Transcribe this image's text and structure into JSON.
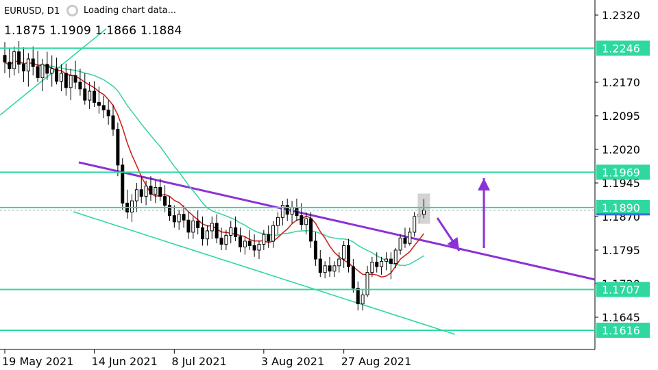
{
  "header": {
    "symbol": "EURUSD, D1",
    "loading_text": "Loading chart data...",
    "ohlc_text": "1.1875 1.1909 1.1866 1.1884"
  },
  "colors": {
    "background": "#ffffff",
    "level_line": "#2ed8a0",
    "ma_fast": "#c8271f",
    "ma_slow": "#3fd3a3",
    "trendline": "#8b32d6",
    "arrow": "#8b32d6",
    "candle_bull": "#ffffff",
    "candle_bear": "#000000",
    "price_label_bg": "#2ed8a0",
    "price_label_text": "#ffffff",
    "bid_line": "#3a6fd8"
  },
  "chart_data": {
    "type": "candlestick",
    "symbol": "EURUSD",
    "timeframe": "D1",
    "ylim": [
      1.1595,
      1.2355
    ],
    "y_ticks": [
      "1.2320",
      "1.2170",
      "1.2095",
      "1.2020",
      "1.1945",
      "1.1870",
      "1.1795",
      "1.1720",
      "1.1645"
    ],
    "x_ticks": [
      "19 May 2021",
      "14 Jun 2021",
      "8 Jul 2021",
      "3 Aug 2021",
      "27 Aug 2021"
    ],
    "last_price": {
      "open": 1.1875,
      "high": 1.1909,
      "low": 1.1866,
      "close": 1.1884
    },
    "levels": [
      {
        "price": 1.2246,
        "label": "1.2246"
      },
      {
        "price": 1.1969,
        "label": "1.1969"
      },
      {
        "price": 1.189,
        "label": "1.1890"
      },
      {
        "price": 1.1707,
        "label": "1.1707"
      },
      {
        "price": 1.1616,
        "label": "1.1616"
      }
    ],
    "candles": [
      [
        1.223,
        1.226,
        1.219,
        1.2215
      ],
      [
        1.2215,
        1.2245,
        1.218,
        1.22
      ],
      [
        1.22,
        1.225,
        1.2185,
        1.2238
      ],
      [
        1.2238,
        1.2262,
        1.219,
        1.221
      ],
      [
        1.221,
        1.2248,
        1.217,
        1.2195
      ],
      [
        1.2195,
        1.2235,
        1.216,
        1.2222
      ],
      [
        1.2222,
        1.225,
        1.2185,
        1.2205
      ],
      [
        1.2205,
        1.224,
        1.217,
        1.218
      ],
      [
        1.218,
        1.2222,
        1.215,
        1.221
      ],
      [
        1.221,
        1.2238,
        1.2175,
        1.219
      ],
      [
        1.219,
        1.223,
        1.216,
        1.22
      ],
      [
        1.22,
        1.2225,
        1.2165,
        1.2172
      ],
      [
        1.2172,
        1.221,
        1.215,
        1.219
      ],
      [
        1.219,
        1.2212,
        1.214,
        1.2158
      ],
      [
        1.2158,
        1.22,
        1.213,
        1.2185
      ],
      [
        1.2185,
        1.2218,
        1.2155,
        1.217
      ],
      [
        1.217,
        1.22,
        1.214,
        1.2155
      ],
      [
        1.2155,
        1.219,
        1.212,
        1.213
      ],
      [
        1.213,
        1.217,
        1.211,
        1.215
      ],
      [
        1.215,
        1.2172,
        1.2115,
        1.2125
      ],
      [
        1.2125,
        1.216,
        1.21,
        1.2118
      ],
      [
        1.2118,
        1.214,
        1.209,
        1.2108
      ],
      [
        1.2108,
        1.213,
        1.2075,
        1.2095
      ],
      [
        1.2095,
        1.212,
        1.205,
        1.2065
      ],
      [
        1.2065,
        1.208,
        1.196,
        1.1985
      ],
      [
        1.1985,
        1.2,
        1.1885,
        1.19
      ],
      [
        1.19,
        1.193,
        1.1865,
        1.188
      ],
      [
        1.188,
        1.192,
        1.1858,
        1.1905
      ],
      [
        1.1905,
        1.1945,
        1.188,
        1.193
      ],
      [
        1.193,
        1.196,
        1.19,
        1.1915
      ],
      [
        1.1915,
        1.195,
        1.1895,
        1.1938
      ],
      [
        1.1938,
        1.196,
        1.1905,
        1.192
      ],
      [
        1.192,
        1.195,
        1.19,
        1.1935
      ],
      [
        1.1935,
        1.1955,
        1.1905,
        1.1915
      ],
      [
        1.1915,
        1.194,
        1.188,
        1.1895
      ],
      [
        1.1895,
        1.1915,
        1.186,
        1.1872
      ],
      [
        1.1872,
        1.1895,
        1.1845,
        1.1858
      ],
      [
        1.1858,
        1.1885,
        1.184,
        1.1875
      ],
      [
        1.1875,
        1.1895,
        1.1845,
        1.1862
      ],
      [
        1.1862,
        1.188,
        1.182,
        1.1835
      ],
      [
        1.1835,
        1.187,
        1.182,
        1.186
      ],
      [
        1.186,
        1.1885,
        1.183,
        1.1845
      ],
      [
        1.1845,
        1.187,
        1.1805,
        1.182
      ],
      [
        1.182,
        1.185,
        1.1805,
        1.1838
      ],
      [
        1.1838,
        1.187,
        1.182,
        1.1855
      ],
      [
        1.1855,
        1.1875,
        1.181,
        1.1822
      ],
      [
        1.1822,
        1.1845,
        1.1795,
        1.1808
      ],
      [
        1.1808,
        1.184,
        1.1795,
        1.1828
      ],
      [
        1.1828,
        1.186,
        1.181,
        1.1845
      ],
      [
        1.1845,
        1.187,
        1.1815,
        1.1825
      ],
      [
        1.1825,
        1.1845,
        1.179,
        1.1802
      ],
      [
        1.1802,
        1.1825,
        1.1785,
        1.1815
      ],
      [
        1.1815,
        1.184,
        1.1795,
        1.1805
      ],
      [
        1.1805,
        1.183,
        1.178,
        1.1795
      ],
      [
        1.1795,
        1.1815,
        1.1775,
        1.1808
      ],
      [
        1.1808,
        1.184,
        1.1795,
        1.183
      ],
      [
        1.183,
        1.185,
        1.18,
        1.1815
      ],
      [
        1.1815,
        1.186,
        1.18,
        1.185
      ],
      [
        1.185,
        1.188,
        1.183,
        1.1868
      ],
      [
        1.1868,
        1.1905,
        1.185,
        1.1895
      ],
      [
        1.1895,
        1.191,
        1.186,
        1.1875
      ],
      [
        1.1875,
        1.1905,
        1.1855,
        1.189
      ],
      [
        1.189,
        1.191,
        1.186,
        1.1872
      ],
      [
        1.1872,
        1.19,
        1.184,
        1.1852
      ],
      [
        1.1852,
        1.188,
        1.183,
        1.1865
      ],
      [
        1.1865,
        1.188,
        1.18,
        1.1815
      ],
      [
        1.1815,
        1.1835,
        1.176,
        1.1775
      ],
      [
        1.1775,
        1.1795,
        1.1735,
        1.1745
      ],
      [
        1.1745,
        1.177,
        1.1732,
        1.176
      ],
      [
        1.176,
        1.178,
        1.1735,
        1.1748
      ],
      [
        1.1748,
        1.177,
        1.1735,
        1.176
      ],
      [
        1.176,
        1.179,
        1.1745,
        1.1775
      ],
      [
        1.1775,
        1.1815,
        1.1755,
        1.1805
      ],
      [
        1.1805,
        1.182,
        1.1745,
        1.1758
      ],
      [
        1.1758,
        1.1775,
        1.17,
        1.171
      ],
      [
        1.171,
        1.1725,
        1.166,
        1.1675
      ],
      [
        1.1675,
        1.1705,
        1.166,
        1.1695
      ],
      [
        1.1695,
        1.176,
        1.169,
        1.1745
      ],
      [
        1.1745,
        1.178,
        1.1735,
        1.1768
      ],
      [
        1.1768,
        1.179,
        1.1745,
        1.1758
      ],
      [
        1.1758,
        1.178,
        1.174,
        1.177
      ],
      [
        1.177,
        1.179,
        1.175,
        1.1775
      ],
      [
        1.1775,
        1.179,
        1.173,
        1.1765
      ],
      [
        1.1765,
        1.18,
        1.1755,
        1.1795
      ],
      [
        1.1795,
        1.183,
        1.1785,
        1.1822
      ],
      [
        1.1822,
        1.1845,
        1.18,
        1.181
      ],
      [
        1.181,
        1.1845,
        1.1805,
        1.1835
      ],
      [
        1.1835,
        1.188,
        1.1825,
        1.187
      ],
      [
        1.187,
        1.189,
        1.1855,
        1.1875
      ],
      [
        1.1875,
        1.1909,
        1.1866,
        1.1884
      ]
    ]
  }
}
